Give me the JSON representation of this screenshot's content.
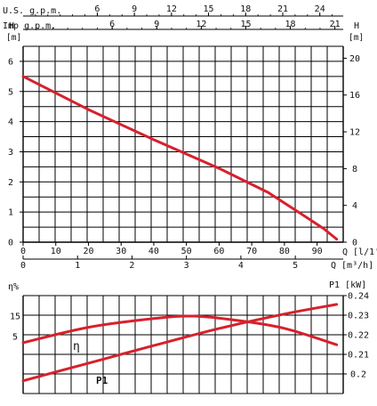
{
  "chart_data": [
    {
      "type": "line",
      "top_axes": [
        {
          "label": "U.S. g.p.m.",
          "ticks": [
            "6",
            "9",
            "12",
            "15",
            "18",
            "21",
            "24"
          ],
          "per_lpm": 0.2642
        },
        {
          "label": "Imp g.p.m.",
          "ticks": [
            "6",
            "9",
            "12",
            "15",
            "18",
            "21"
          ],
          "per_lpm": 0.22
        }
      ],
      "left_axis": {
        "label": "H",
        "unit": "[m]",
        "ticks": [
          "0",
          "1",
          "2",
          "3",
          "4",
          "5",
          "6"
        ],
        "ylim": [
          0,
          6.5
        ]
      },
      "right_axis": {
        "label": "H",
        "unit": "[m]",
        "ticks": [
          "0",
          "4",
          "8",
          "12",
          "16",
          "20"
        ]
      },
      "x_axis_lpm": {
        "label": "Q [l/1']",
        "ticks": [
          "0",
          "10",
          "20",
          "30",
          "40",
          "50",
          "60",
          "70",
          "80",
          "90"
        ],
        "xlim": [
          0,
          98
        ]
      },
      "x_axis_m3h": {
        "label": "Q [m³/h]",
        "ticks": [
          "0",
          "1",
          "2",
          "3",
          "4",
          "5"
        ]
      },
      "series": [
        {
          "values_x": [
            0,
            20,
            40,
            60,
            75,
            85,
            92,
            96
          ],
          "values_y": [
            5.5,
            4.4,
            3.4,
            2.45,
            1.65,
            0.95,
            0.45,
            0.1
          ]
        }
      ],
      "grid": true,
      "colors": {
        "curve": "#d8202c",
        "grid": "#000000"
      }
    },
    {
      "type": "line",
      "left_axis": {
        "label": "η%",
        "ticks": [
          "5",
          "15"
        ]
      },
      "right_axis": {
        "label": "P1 [kW]",
        "ticks": [
          "0.2",
          "0.21",
          "0.22",
          "0.23",
          "0.24"
        ]
      },
      "series": [
        {
          "name": "η",
          "axis": "left",
          "values_x": [
            0,
            20,
            40,
            52,
            65,
            80,
            96
          ],
          "values_y": [
            2,
            9.5,
            13.8,
            15,
            13,
            9,
            1
          ]
        },
        {
          "name": "P1",
          "axis": "right",
          "values_x": [
            0,
            20,
            40,
            60,
            80,
            96
          ],
          "values_y": [
            0.1965,
            0.2055,
            0.2145,
            0.2232,
            0.2306,
            0.2355
          ]
        }
      ],
      "grid": true,
      "colors": {
        "curve": "#d8202c",
        "grid": "#000000"
      }
    }
  ]
}
